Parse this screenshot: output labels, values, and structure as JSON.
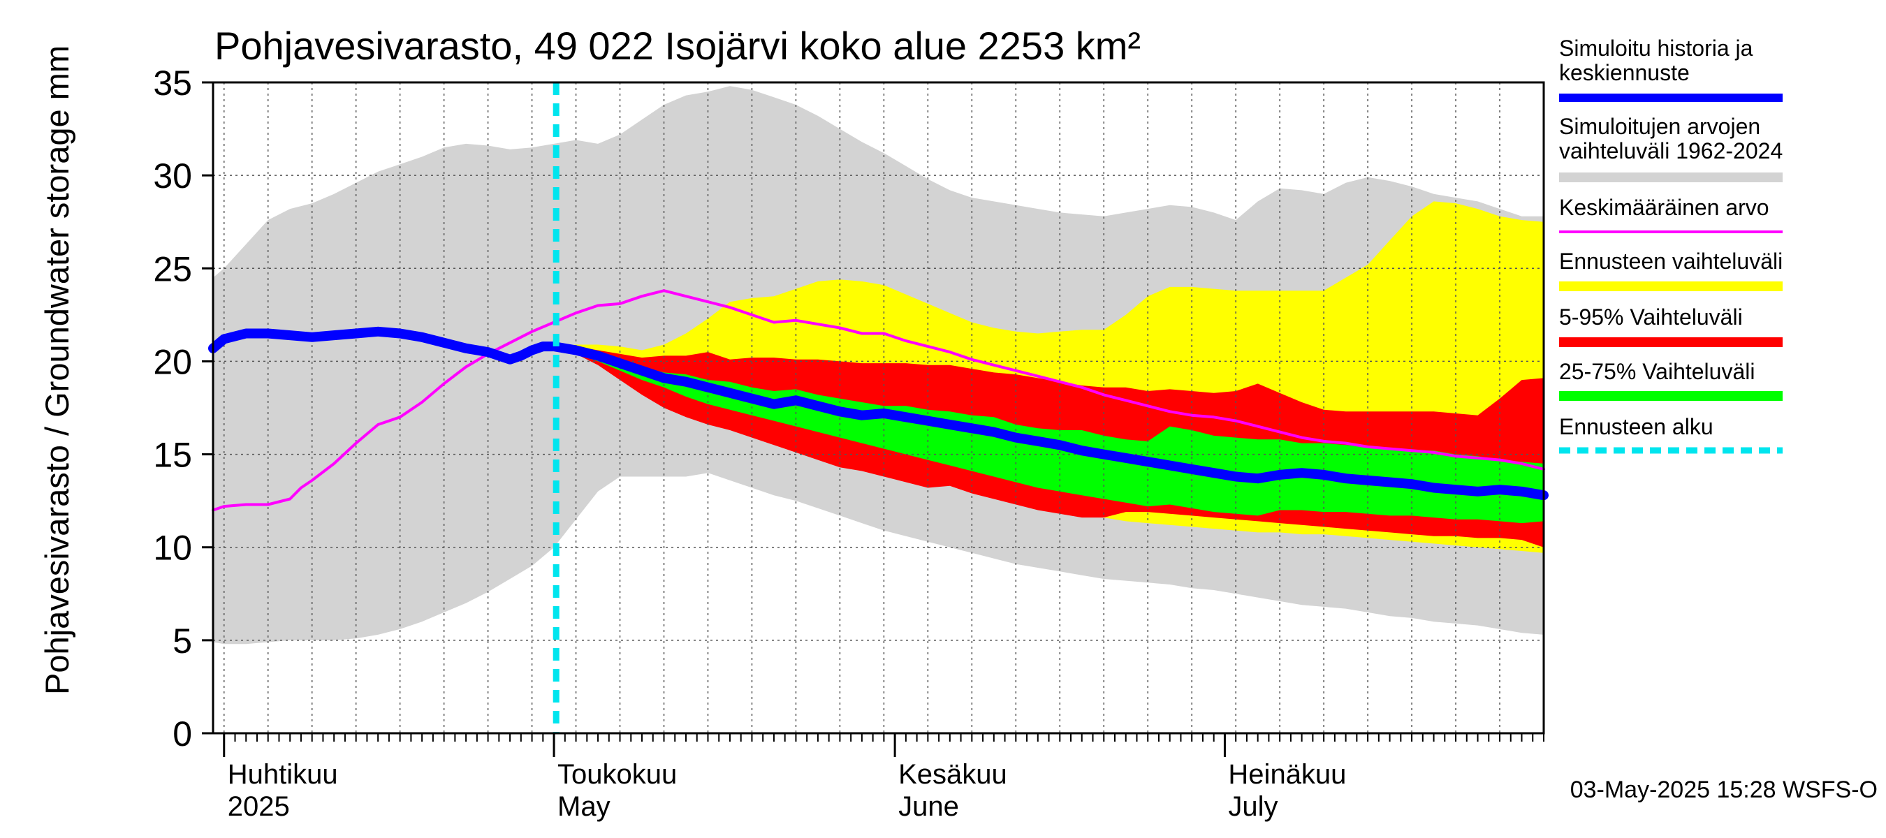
{
  "chart_data": {
    "type": "area",
    "title": "Pohjavesivarasto, 49 022 Isojärvi koko alue 2253 km²",
    "ylabel": "Pohjavesivarasto / Groundwater storage   mm",
    "ylim": [
      0,
      35
    ],
    "yticks": [
      0,
      5,
      10,
      15,
      20,
      25,
      30,
      35
    ],
    "x_unit": "day (0 = 1 April 2025, 91 = 1 July 2025)",
    "xlim": [
      -1,
      120
    ],
    "month_labels": [
      {
        "line1": "Huhtikuu",
        "line2": "2025",
        "day": 0
      },
      {
        "line1": "Toukokuu",
        "line2": "May",
        "day": 30
      },
      {
        "line1": "Kesäkuu",
        "line2": "June",
        "day": 61
      },
      {
        "line1": "Heinäkuu",
        "line2": "July",
        "day": 91
      }
    ],
    "forecast_start_day": 30.2,
    "timestamp": "03-May-2025 15:28 WSFS-O",
    "grid": true,
    "legend_position": "right",
    "series": [
      {
        "name": "Simuloitujen arvojen vaihteluväli 1962-2024",
        "kind": "band",
        "color": "#d3d3d3",
        "x": [
          -1,
          0,
          2,
          4,
          6,
          8,
          10,
          12,
          14,
          16,
          18,
          20,
          22,
          24,
          26,
          28,
          30,
          32,
          34,
          36,
          38,
          40,
          42,
          44,
          46,
          48,
          50,
          52,
          54,
          56,
          58,
          60,
          62,
          64,
          66,
          68,
          70,
          72,
          74,
          76,
          78,
          80,
          82,
          84,
          86,
          88,
          90,
          92,
          94,
          96,
          98,
          100,
          102,
          104,
          106,
          108,
          110,
          112,
          114,
          116,
          118,
          120
        ],
        "upper": [
          24.5,
          25,
          26.3,
          27.6,
          28.2,
          28.5,
          29.0,
          29.6,
          30.2,
          30.6,
          31.0,
          31.5,
          31.7,
          31.6,
          31.4,
          31.5,
          31.7,
          31.9,
          31.7,
          32.2,
          33.0,
          33.8,
          34.3,
          34.5,
          34.8,
          34.6,
          34.2,
          33.8,
          33.2,
          32.5,
          31.8,
          31.2,
          30.5,
          29.8,
          29.2,
          28.8,
          28.6,
          28.4,
          28.2,
          28.0,
          27.9,
          27.8,
          28.0,
          28.2,
          28.4,
          28.3,
          28.0,
          27.6,
          28.6,
          29.3,
          29.2,
          29.0,
          29.6,
          29.9,
          29.7,
          29.4,
          29.0,
          28.8,
          28.6,
          28.2,
          27.8,
          27.8
        ],
        "lower": [
          4.9,
          4.8,
          4.8,
          4.9,
          5.0,
          5.0,
          5.0,
          5.1,
          5.3,
          5.6,
          6.0,
          6.5,
          7.0,
          7.6,
          8.3,
          9.0,
          10.0,
          11.5,
          13.0,
          13.8,
          13.8,
          13.8,
          13.8,
          14.0,
          13.6,
          13.2,
          12.8,
          12.5,
          12.1,
          11.7,
          11.3,
          10.9,
          10.6,
          10.3,
          10.0,
          9.7,
          9.4,
          9.1,
          8.9,
          8.7,
          8.5,
          8.3,
          8.2,
          8.1,
          8.0,
          7.8,
          7.7,
          7.5,
          7.3,
          7.1,
          6.9,
          6.8,
          6.7,
          6.5,
          6.3,
          6.2,
          6.0,
          5.9,
          5.8,
          5.6,
          5.4,
          5.3
        ]
      },
      {
        "name": "Ennusteen vaihteluväli",
        "kind": "band",
        "color": "#ffff00",
        "x": [
          30.2,
          32,
          34,
          36,
          38,
          40,
          42,
          44,
          46,
          48,
          50,
          52,
          54,
          56,
          58,
          60,
          62,
          64,
          66,
          68,
          70,
          72,
          74,
          76,
          78,
          80,
          82,
          84,
          86,
          88,
          90,
          92,
          94,
          96,
          98,
          100,
          102,
          104,
          106,
          108,
          110,
          112,
          114,
          116,
          118,
          120
        ],
        "upper": [
          20.8,
          20.9,
          20.9,
          20.8,
          20.6,
          20.9,
          21.5,
          22.3,
          23.2,
          23.4,
          23.5,
          23.9,
          24.3,
          24.4,
          24.3,
          24.1,
          23.6,
          23.1,
          22.6,
          22.1,
          21.8,
          21.6,
          21.5,
          21.6,
          21.7,
          21.7,
          22.5,
          23.5,
          24.0,
          24.0,
          23.9,
          23.8,
          23.8,
          23.8,
          23.8,
          23.8,
          24.5,
          25.2,
          26.5,
          27.8,
          28.6,
          28.5,
          28.2,
          27.8,
          27.6,
          27.5
        ],
        "lower": [
          20.8,
          20.6,
          20.2,
          19.6,
          19.0,
          18.4,
          17.8,
          17.4,
          17.0,
          16.6,
          16.2,
          15.8,
          15.4,
          15.0,
          14.6,
          14.2,
          13.9,
          13.6,
          13.3,
          13.0,
          12.7,
          12.4,
          12.2,
          12.0,
          11.8,
          11.6,
          11.4,
          11.3,
          11.2,
          11.1,
          11.0,
          10.9,
          10.8,
          10.8,
          10.7,
          10.7,
          10.6,
          10.5,
          10.4,
          10.3,
          10.2,
          10.1,
          10.0,
          9.9,
          9.8,
          9.7
        ]
      },
      {
        "name": "5-95% Vaihteluväli",
        "kind": "band",
        "color": "#ff0000",
        "x": [
          30.2,
          32,
          34,
          36,
          38,
          40,
          42,
          44,
          46,
          48,
          50,
          52,
          54,
          56,
          58,
          60,
          62,
          64,
          66,
          68,
          70,
          72,
          74,
          76,
          78,
          80,
          82,
          84,
          86,
          88,
          90,
          92,
          94,
          96,
          98,
          100,
          102,
          104,
          106,
          108,
          110,
          112,
          114,
          116,
          118,
          120
        ],
        "upper": [
          20.8,
          20.8,
          20.6,
          20.4,
          20.2,
          20.3,
          20.3,
          20.5,
          20.1,
          20.2,
          20.2,
          20.1,
          20.1,
          20.0,
          19.9,
          19.9,
          19.9,
          19.8,
          19.8,
          19.6,
          19.4,
          19.3,
          19.1,
          18.9,
          18.7,
          18.6,
          18.6,
          18.4,
          18.5,
          18.4,
          18.3,
          18.4,
          18.8,
          18.3,
          17.8,
          17.4,
          17.3,
          17.3,
          17.3,
          17.3,
          17.3,
          17.2,
          17.1,
          18.0,
          19.0,
          19.1
        ],
        "lower": [
          20.8,
          20.4,
          19.8,
          19.0,
          18.2,
          17.5,
          17.0,
          16.6,
          16.3,
          15.9,
          15.5,
          15.1,
          14.7,
          14.3,
          14.1,
          13.8,
          13.5,
          13.2,
          13.3,
          12.9,
          12.6,
          12.3,
          12.0,
          11.8,
          11.6,
          11.6,
          11.9,
          11.9,
          11.8,
          11.7,
          11.6,
          11.5,
          11.4,
          11.3,
          11.2,
          11.1,
          11.0,
          10.9,
          10.8,
          10.7,
          10.6,
          10.6,
          10.5,
          10.5,
          10.4,
          10.0
        ]
      },
      {
        "name": "25-75% Vaihteluväli",
        "kind": "band",
        "color": "#00ff00",
        "x": [
          30.2,
          32,
          34,
          36,
          38,
          40,
          42,
          44,
          46,
          48,
          50,
          52,
          54,
          56,
          58,
          60,
          62,
          64,
          66,
          68,
          70,
          72,
          74,
          76,
          78,
          80,
          82,
          84,
          86,
          88,
          90,
          92,
          94,
          96,
          98,
          100,
          102,
          104,
          106,
          108,
          110,
          112,
          114,
          116,
          118,
          120
        ],
        "upper": [
          20.8,
          20.6,
          20.3,
          20.0,
          19.7,
          19.4,
          19.3,
          19.0,
          18.9,
          18.6,
          18.4,
          18.5,
          18.2,
          18.0,
          17.8,
          17.6,
          17.6,
          17.4,
          17.3,
          17.1,
          17.0,
          16.6,
          16.4,
          16.3,
          16.3,
          16.0,
          15.8,
          15.7,
          16.5,
          16.3,
          16.0,
          15.9,
          15.8,
          15.8,
          15.6,
          15.6,
          15.5,
          15.4,
          15.3,
          15.2,
          15.2,
          15.0,
          14.9,
          14.7,
          14.6,
          14.5
        ],
        "lower": [
          20.8,
          20.4,
          20.0,
          19.5,
          19.0,
          18.6,
          18.1,
          17.7,
          17.4,
          17.1,
          16.8,
          16.5,
          16.2,
          15.9,
          15.6,
          15.3,
          15.0,
          14.7,
          14.4,
          14.1,
          13.8,
          13.5,
          13.2,
          13.0,
          12.8,
          12.6,
          12.4,
          12.2,
          12.3,
          12.1,
          11.9,
          11.8,
          11.7,
          12.0,
          12.0,
          11.9,
          11.9,
          11.8,
          11.7,
          11.7,
          11.6,
          11.5,
          11.5,
          11.4,
          11.3,
          11.4
        ]
      },
      {
        "name": "Keskimääräinen arvo",
        "kind": "line",
        "color": "#ff00ff",
        "x": [
          -1,
          0,
          2,
          4,
          6,
          7,
          8,
          10,
          12,
          14,
          16,
          18,
          20,
          22,
          24,
          26,
          28,
          30,
          32,
          34,
          36,
          38,
          40,
          42,
          44,
          46,
          48,
          50,
          52,
          54,
          56,
          58,
          60,
          62,
          64,
          66,
          68,
          70,
          72,
          74,
          76,
          78,
          80,
          82,
          84,
          86,
          88,
          90,
          92,
          94,
          96,
          98,
          100,
          102,
          104,
          106,
          108,
          110,
          112,
          114,
          116,
          118,
          120
        ],
        "values": [
          12.0,
          12.2,
          12.3,
          12.3,
          12.6,
          13.2,
          13.6,
          14.5,
          15.6,
          16.6,
          17.0,
          17.8,
          18.8,
          19.7,
          20.4,
          21.0,
          21.6,
          22.1,
          22.6,
          23.0,
          23.1,
          23.5,
          23.8,
          23.5,
          23.2,
          22.9,
          22.5,
          22.1,
          22.2,
          22.0,
          21.8,
          21.5,
          21.5,
          21.1,
          20.8,
          20.5,
          20.1,
          19.8,
          19.5,
          19.2,
          18.9,
          18.6,
          18.2,
          17.9,
          17.6,
          17.3,
          17.1,
          17.0,
          16.8,
          16.5,
          16.2,
          15.9,
          15.7,
          15.6,
          15.4,
          15.3,
          15.2,
          15.1,
          14.9,
          14.8,
          14.7,
          14.5,
          14.2
        ]
      },
      {
        "name": "Simuloitu historia ja keskiennuste",
        "kind": "line",
        "color": "#0000ff",
        "x": [
          -1,
          0,
          2,
          4,
          6,
          8,
          10,
          12,
          14,
          16,
          18,
          20,
          22,
          24,
          26,
          27,
          28,
          29,
          30,
          32,
          34,
          36,
          38,
          40,
          42,
          44,
          46,
          48,
          50,
          52,
          54,
          56,
          58,
          60,
          62,
          64,
          66,
          68,
          70,
          72,
          74,
          76,
          78,
          80,
          82,
          84,
          86,
          88,
          90,
          92,
          94,
          96,
          98,
          100,
          102,
          104,
          106,
          108,
          110,
          112,
          114,
          116,
          118,
          120
        ],
        "values": [
          20.7,
          21.2,
          21.5,
          21.5,
          21.4,
          21.3,
          21.4,
          21.5,
          21.6,
          21.5,
          21.3,
          21.0,
          20.7,
          20.5,
          20.1,
          20.3,
          20.6,
          20.8,
          20.8,
          20.6,
          20.3,
          19.9,
          19.5,
          19.1,
          18.9,
          18.6,
          18.3,
          18.0,
          17.7,
          17.9,
          17.6,
          17.3,
          17.1,
          17.2,
          17.0,
          16.8,
          16.6,
          16.4,
          16.2,
          15.9,
          15.7,
          15.5,
          15.2,
          15.0,
          14.8,
          14.6,
          14.4,
          14.2,
          14.0,
          13.8,
          13.7,
          13.9,
          14.0,
          13.9,
          13.7,
          13.6,
          13.5,
          13.4,
          13.2,
          13.1,
          13.0,
          13.1,
          13.0,
          12.8
        ]
      }
    ],
    "legend": [
      {
        "label1": "Simuloitu historia ja",
        "label2": "keskiennuste",
        "color": "#0000ff",
        "style": "thick"
      },
      {
        "label1": "Simuloitujen arvojen",
        "label2": "vaihteluväli 1962-2024",
        "color": "#d3d3d3",
        "style": "band"
      },
      {
        "label1": "Keskimääräinen arvo",
        "label2": "",
        "color": "#ff00ff",
        "style": "thin"
      },
      {
        "label1": "Ennusteen vaihteluväli",
        "label2": "",
        "color": "#ffff00",
        "style": "band"
      },
      {
        "label1": "5-95% Vaihteluväli",
        "label2": "",
        "color": "#ff0000",
        "style": "band"
      },
      {
        "label1": "25-75% Vaihteluväli",
        "label2": "",
        "color": "#00ff00",
        "style": "band"
      },
      {
        "label1": "Ennusteen alku",
        "label2": "",
        "color": "#00e5ee",
        "style": "dashed"
      }
    ]
  }
}
